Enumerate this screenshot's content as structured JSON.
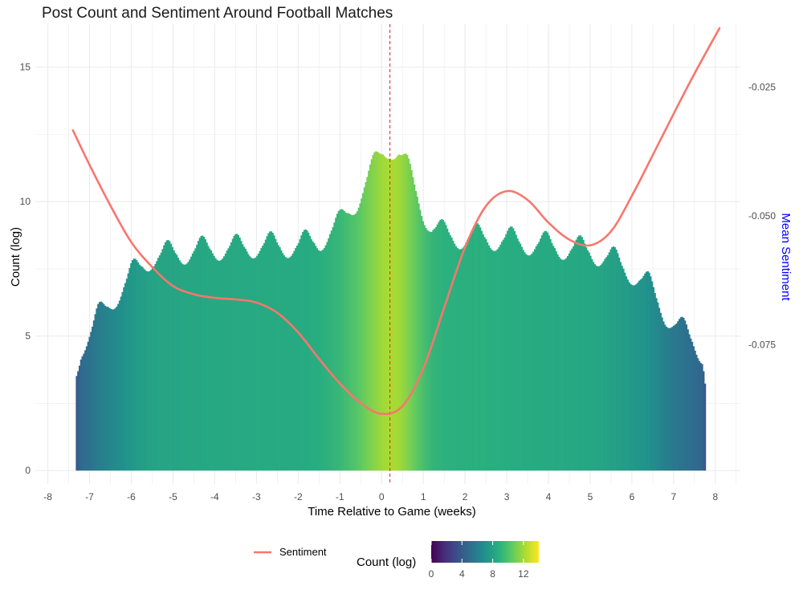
{
  "chart_data": {
    "type": "bar",
    "title": "Post Count and Sentiment Around Football Matches",
    "xlabel": "Time Relative to Game (weeks)",
    "ylabel": "Count (log)",
    "y2label": "Mean Sentiment",
    "xlim": [
      -8.3,
      8.6
    ],
    "ylim": [
      -0.5,
      16.6
    ],
    "y2lim": [
      -0.102,
      -0.0128
    ],
    "x_ticks": [
      -8,
      -7,
      -6,
      -5,
      -4,
      -3,
      -2,
      -1,
      0,
      1,
      2,
      3,
      4,
      5,
      6,
      7,
      8
    ],
    "y_ticks": [
      0,
      5,
      10,
      15
    ],
    "y2_ticks": [
      -0.075,
      -0.05,
      -0.025
    ],
    "grid": true,
    "reference_line": {
      "x": 0.2,
      "style": "dashed",
      "color": "#d62728"
    },
    "bars": {
      "name": "Count (log)",
      "x_range": [
        -7.33,
        7.77
      ],
      "profile_x": [
        -7.33,
        -7.2,
        -7.0,
        -6.8,
        -6.5,
        -6.2,
        -6.0,
        -5.5,
        -5.0,
        -4.5,
        -4.0,
        -3.5,
        -3.0,
        -2.5,
        -2.0,
        -1.5,
        -1.0,
        -0.6,
        -0.3,
        0.0,
        0.2,
        0.4,
        0.6,
        0.8,
        1.0,
        1.2,
        1.5,
        2.0,
        2.5,
        3.0,
        3.5,
        4.0,
        4.5,
        5.0,
        5.5,
        6.0,
        6.4,
        6.6,
        6.8,
        7.0,
        7.3,
        7.5,
        7.7,
        7.77
      ],
      "profile_count": [
        3.8,
        4.8,
        5.2,
        5.8,
        6.4,
        7.0,
        7.4,
        8.1,
        8.2,
        8.3,
        8.4,
        8.4,
        8.5,
        8.5,
        8.5,
        8.7,
        9.3,
        10.2,
        11.1,
        11.9,
        12.2,
        12.0,
        11.4,
        10.6,
        9.8,
        9.2,
        8.9,
        8.8,
        8.8,
        8.7,
        8.6,
        8.5,
        8.4,
        8.3,
        8.0,
        7.5,
        7.0,
        6.5,
        6.0,
        5.6,
        5.2,
        4.9,
        4.5,
        3.4
      ]
    },
    "sentiment": {
      "name": "Sentiment",
      "color": "#f8766d",
      "x": [
        -7.4,
        -7.0,
        -6.5,
        -6.0,
        -5.5,
        -5.0,
        -4.5,
        -4.0,
        -3.5,
        -3.0,
        -2.5,
        -2.0,
        -1.5,
        -1.0,
        -0.5,
        0.0,
        0.5,
        1.0,
        1.5,
        2.0,
        2.5,
        3.0,
        3.5,
        4.0,
        4.5,
        5.0,
        5.5,
        6.0,
        6.5,
        7.0,
        7.5,
        8.1
      ],
      "y": [
        -0.0334,
        -0.0401,
        -0.048,
        -0.0551,
        -0.0599,
        -0.0636,
        -0.0652,
        -0.0659,
        -0.0662,
        -0.0668,
        -0.0688,
        -0.0726,
        -0.0777,
        -0.0825,
        -0.0863,
        -0.0884,
        -0.0869,
        -0.0796,
        -0.0678,
        -0.0561,
        -0.0481,
        -0.0452,
        -0.0469,
        -0.0513,
        -0.0546,
        -0.0557,
        -0.053,
        -0.0461,
        -0.0382,
        -0.0302,
        -0.0224,
        -0.0136
      ]
    },
    "legend": {
      "placement": "bottom",
      "line_label": "Sentiment",
      "colorbar_title": "Count (log)",
      "colorbar_range": [
        0,
        14
      ],
      "colorbar_ticks": [
        0,
        4,
        8,
        12
      ]
    }
  }
}
